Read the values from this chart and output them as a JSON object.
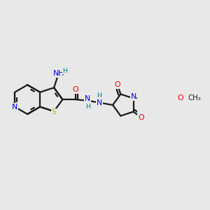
{
  "bg_color": "#e8e8e8",
  "bond_color": "#1a1a1a",
  "bond_lw": 1.6,
  "atom_colors": {
    "N": "#0000ee",
    "O": "#ee0000",
    "S": "#bbbb00",
    "H": "#008080",
    "C": "#1a1a1a"
  },
  "label_fs": 7.8,
  "small_fs": 6.8
}
